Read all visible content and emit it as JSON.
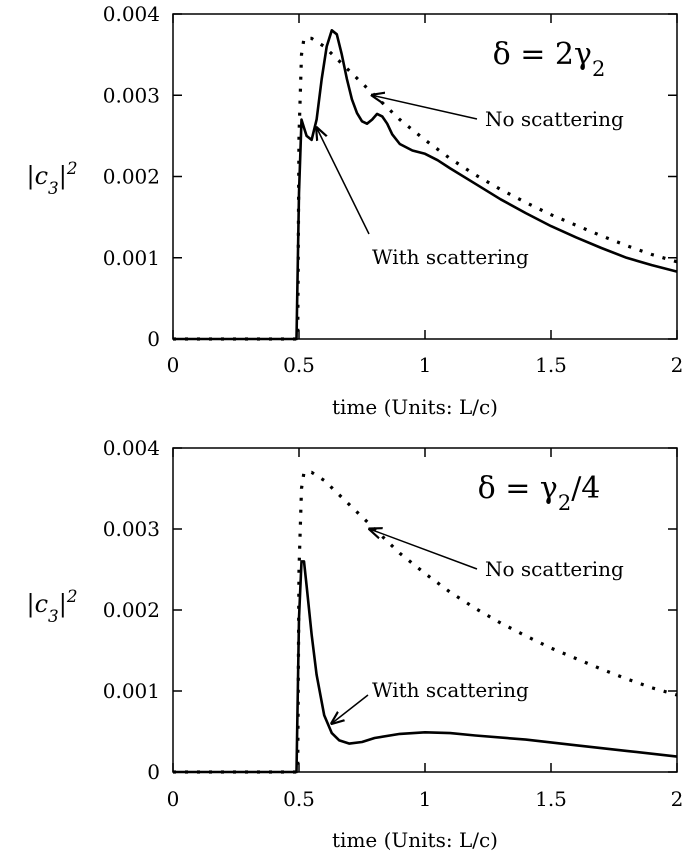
{
  "chart_data": [
    {
      "type": "line",
      "title": "δ = 2γ₂",
      "xlabel": "time (Units: L/c)",
      "ylabel": "|c₃|²",
      "xlim": [
        0,
        2
      ],
      "ylim": [
        0,
        0.004
      ],
      "x_ticks": [
        "0",
        "0.5",
        "1",
        "1.5",
        "2"
      ],
      "y_ticks": [
        "0",
        "0.001",
        "0.002",
        "0.003",
        "0.004"
      ],
      "legend": "none",
      "series": [
        {
          "style": "solid",
          "x": [
            0,
            0.49,
            0.5,
            0.51,
            0.52,
            0.53,
            0.55,
            0.57,
            0.59,
            0.61,
            0.63,
            0.65,
            0.67,
            0.69,
            0.71,
            0.73,
            0.75,
            0.77,
            0.79,
            0.81,
            0.83,
            0.85,
            0.87,
            0.9,
            0.95,
            1.0,
            1.05,
            1.1,
            1.2,
            1.3,
            1.4,
            1.5,
            1.6,
            1.7,
            1.8,
            1.9,
            2.0
          ],
          "y": [
            0,
            0,
            0.0018,
            0.0027,
            0.0026,
            0.0025,
            0.00245,
            0.0027,
            0.0032,
            0.0036,
            0.0038,
            0.00375,
            0.0035,
            0.0032,
            0.00295,
            0.00278,
            0.00268,
            0.00265,
            0.0027,
            0.00277,
            0.00274,
            0.00265,
            0.00252,
            0.0024,
            0.00232,
            0.00228,
            0.0022,
            0.0021,
            0.00191,
            0.00172,
            0.00155,
            0.00139,
            0.00125,
            0.00112,
            0.001,
            0.00091,
            0.00083
          ]
        },
        {
          "style": "dotted",
          "x": [
            0,
            0.495,
            0.5,
            0.51,
            0.52,
            0.55,
            0.6,
            0.7,
            0.8,
            0.9,
            1.0,
            1.1,
            1.2,
            1.3,
            1.4,
            1.5,
            1.6,
            1.7,
            1.8,
            1.9,
            2.0
          ],
          "y": [
            0,
            0,
            0.0025,
            0.0035,
            0.0037,
            0.0037,
            0.0036,
            0.0033,
            0.003,
            0.0027,
            0.00245,
            0.00222,
            0.00202,
            0.00184,
            0.00168,
            0.00153,
            0.0014,
            0.00127,
            0.00115,
            0.00104,
            0.00095
          ]
        }
      ],
      "annotations": [
        {
          "text": "No scattering",
          "arrow_to": [
            0.79,
            0.003
          ]
        },
        {
          "text": "With scattering",
          "arrow_to": [
            0.57,
            0.0026
          ]
        }
      ]
    },
    {
      "type": "line",
      "title": "δ = γ₂/4",
      "xlabel": "time (Units: L/c)",
      "ylabel": "|c₃|²",
      "xlim": [
        0,
        2
      ],
      "ylim": [
        0,
        0.004
      ],
      "x_ticks": [
        "0",
        "0.5",
        "1",
        "1.5",
        "2"
      ],
      "y_ticks": [
        "0",
        "0.001",
        "0.002",
        "0.003",
        "0.004"
      ],
      "legend": "none",
      "series": [
        {
          "style": "solid",
          "x": [
            0,
            0.49,
            0.5,
            0.51,
            0.52,
            0.53,
            0.55,
            0.57,
            0.6,
            0.63,
            0.66,
            0.7,
            0.75,
            0.8,
            0.9,
            1.0,
            1.1,
            1.2,
            1.4,
            1.6,
            1.8,
            2.0
          ],
          "y": [
            0,
            0,
            0.0019,
            0.0026,
            0.0026,
            0.0023,
            0.0017,
            0.0012,
            0.0007,
            0.00048,
            0.00039,
            0.00035,
            0.00037,
            0.00042,
            0.00047,
            0.00049,
            0.00048,
            0.00045,
            0.0004,
            0.00033,
            0.00026,
            0.00019
          ]
        },
        {
          "style": "dotted",
          "x": [
            0,
            0.495,
            0.5,
            0.51,
            0.52,
            0.55,
            0.6,
            0.7,
            0.8,
            0.9,
            1.0,
            1.1,
            1.2,
            1.3,
            1.4,
            1.5,
            1.6,
            1.7,
            1.8,
            1.9,
            2.0
          ],
          "y": [
            0,
            0,
            0.0025,
            0.0035,
            0.0037,
            0.0037,
            0.0036,
            0.0033,
            0.003,
            0.0027,
            0.00245,
            0.00222,
            0.00202,
            0.00184,
            0.00168,
            0.00153,
            0.0014,
            0.00127,
            0.00115,
            0.00104,
            0.00095
          ]
        }
      ],
      "annotations": [
        {
          "text": "No scattering",
          "arrow_to": [
            0.78,
            0.003
          ]
        },
        {
          "text": "With scattering",
          "arrow_to": [
            0.63,
            0.0006
          ]
        }
      ]
    }
  ]
}
